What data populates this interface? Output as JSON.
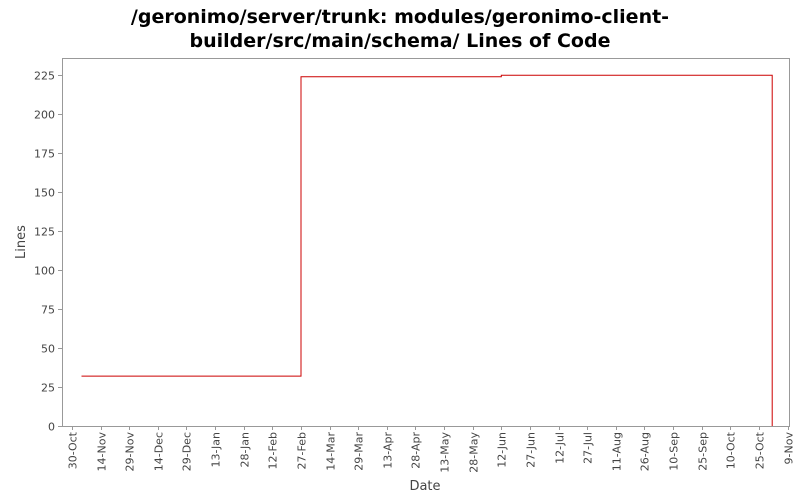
{
  "chart_data": {
    "type": "line",
    "title_lines": [
      "/geronimo/server/trunk: modules/geronimo-client-",
      "builder/src/main/schema/ Lines of Code"
    ],
    "xlabel": "Date",
    "ylabel": "Lines",
    "x_tick_labels": [
      "30-Oct",
      "14-Nov",
      "29-Nov",
      "14-Dec",
      "29-Dec",
      "13-Jan",
      "28-Jan",
      "12-Feb",
      "27-Feb",
      "14-Mar",
      "29-Mar",
      "13-Apr",
      "28-Apr",
      "13-May",
      "28-May",
      "12-Jun",
      "27-Jun",
      "12-Jul",
      "27-Jul",
      "11-Aug",
      "26-Aug",
      "10-Sep",
      "25-Sep",
      "10-Oct",
      "25-Oct",
      "9-Nov"
    ],
    "y_ticks": [
      0,
      25,
      50,
      75,
      100,
      125,
      150,
      175,
      200,
      225
    ],
    "ylim": [
      0,
      236
    ],
    "grid": false,
    "series": [
      {
        "color": "#cc0000",
        "step": true,
        "points": [
          {
            "x": "2005-11-04",
            "y": 32
          },
          {
            "x": "2006-02-27",
            "y": 224
          },
          {
            "x": "2006-06-12",
            "y": 225
          },
          {
            "x": "2006-11-01",
            "y": 225
          },
          {
            "x": "2006-11-01",
            "y": 0
          }
        ]
      }
    ]
  }
}
